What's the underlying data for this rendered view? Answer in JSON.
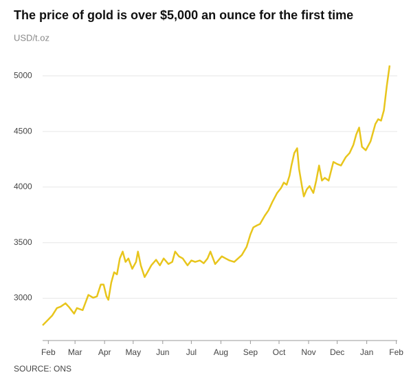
{
  "chart_data": {
    "type": "line",
    "title": "The price of gold is over $5,000 an ounce for the first time",
    "subtitle": "USD/t.oz",
    "source": "SOURCE: ONS",
    "color": "#e8c51c",
    "grid": true,
    "ylim": [
      2620,
      5150
    ],
    "yticks": [
      3000,
      3500,
      4000,
      4500,
      5000
    ],
    "xlim": [
      -6,
      366
    ],
    "xticks": [
      {
        "value": 0,
        "label": "Feb"
      },
      {
        "value": 28,
        "label": "Mar"
      },
      {
        "value": 59,
        "label": "Apr"
      },
      {
        "value": 89,
        "label": "May"
      },
      {
        "value": 120,
        "label": "Jun"
      },
      {
        "value": 150,
        "label": "Jul"
      },
      {
        "value": 181,
        "label": "Aug"
      },
      {
        "value": 212,
        "label": "Sep"
      },
      {
        "value": 242,
        "label": "Oct"
      },
      {
        "value": 273,
        "label": "Nov"
      },
      {
        "value": 303,
        "label": "Dec"
      },
      {
        "value": 334,
        "label": "Jan"
      },
      {
        "value": 365,
        "label": "Feb"
      }
    ],
    "x": [
      -6,
      -1,
      4,
      9,
      13,
      18,
      22,
      27,
      30,
      36,
      42,
      47,
      51,
      55,
      58,
      61,
      63,
      66,
      69,
      72,
      75,
      78,
      81,
      84,
      88,
      92,
      94,
      97,
      101,
      104,
      108,
      113,
      117,
      121,
      126,
      130,
      133,
      137,
      141,
      146,
      150,
      154,
      159,
      163,
      167,
      170,
      175,
      177,
      182,
      186,
      190,
      195,
      199,
      203,
      208,
      212,
      215,
      219,
      222,
      227,
      231,
      235,
      240,
      244,
      247,
      250,
      253,
      255,
      258,
      261,
      263,
      266,
      268,
      271,
      274,
      278,
      281,
      284,
      287,
      290,
      294,
      299,
      303,
      307,
      312,
      316,
      320,
      323,
      326,
      329,
      333,
      338,
      341,
      343,
      346,
      349,
      352,
      355,
      358
    ],
    "values": [
      2757,
      2800,
      2844,
      2912,
      2925,
      2955,
      2918,
      2862,
      2912,
      2893,
      3030,
      3005,
      3017,
      3123,
      3123,
      3017,
      2986,
      3141,
      3234,
      3215,
      3358,
      3420,
      3327,
      3358,
      3265,
      3327,
      3420,
      3296,
      3191,
      3234,
      3296,
      3346,
      3296,
      3358,
      3308,
      3327,
      3420,
      3377,
      3358,
      3296,
      3340,
      3327,
      3340,
      3315,
      3358,
      3420,
      3308,
      3327,
      3377,
      3358,
      3340,
      3327,
      3358,
      3389,
      3463,
      3575,
      3637,
      3656,
      3668,
      3742,
      3792,
      3866,
      3947,
      3990,
      4040,
      4021,
      4102,
      4194,
      4306,
      4349,
      4164,
      4009,
      3916,
      3978,
      4009,
      3947,
      4058,
      4194,
      4058,
      4083,
      4058,
      4226,
      4207,
      4194,
      4269,
      4306,
      4380,
      4473,
      4535,
      4362,
      4331,
      4411,
      4504,
      4566,
      4610,
      4597,
      4690,
      4907,
      5093
    ]
  }
}
